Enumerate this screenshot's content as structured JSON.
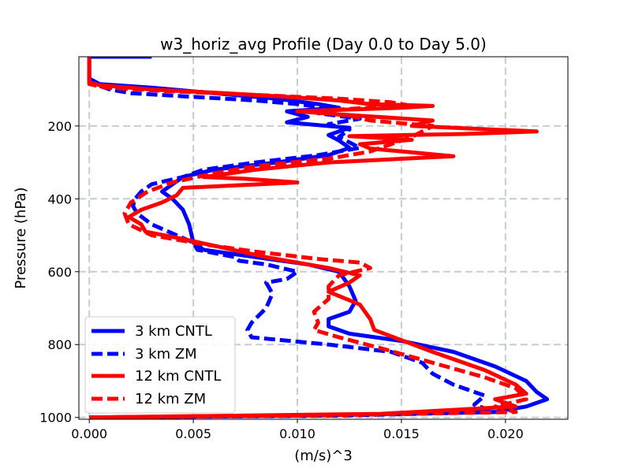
{
  "chart_data": {
    "type": "line",
    "title": "w3_horiz_avg Profile (Day 0.0 to Day 5.0)",
    "xlabel": "(m/s)^3",
    "ylabel": "Pressure (hPa)",
    "xlim": [
      -0.0005,
      0.023
    ],
    "ylim": [
      1005,
      10
    ],
    "y_inverted": true,
    "grid": true,
    "legend_location": "lower-left",
    "x_ticks": [
      0.0,
      0.005,
      0.01,
      0.015,
      0.02
    ],
    "x_tick_labels": [
      "0.000",
      "0.005",
      "0.010",
      "0.015",
      "0.020"
    ],
    "y_ticks": [
      200,
      400,
      600,
      800,
      1000
    ],
    "y_tick_labels": [
      "200",
      "400",
      "600",
      "800",
      "1000"
    ],
    "series": [
      {
        "name": "3 km CNTL",
        "color": "#0000ff",
        "linestyle": "solid",
        "points": [
          [
            0.003,
            10
          ],
          [
            0.0,
            10
          ],
          [
            0.0,
            70
          ],
          [
            0.0005,
            85
          ],
          [
            0.003,
            95
          ],
          [
            0.006,
            110
          ],
          [
            0.009,
            125
          ],
          [
            0.011,
            140
          ],
          [
            0.012,
            150
          ],
          [
            0.0095,
            160
          ],
          [
            0.0105,
            175
          ],
          [
            0.0095,
            190
          ],
          [
            0.0125,
            205
          ],
          [
            0.0115,
            225
          ],
          [
            0.012,
            240
          ],
          [
            0.0125,
            260
          ],
          [
            0.0115,
            280
          ],
          [
            0.009,
            300
          ],
          [
            0.006,
            320
          ],
          [
            0.0045,
            340
          ],
          [
            0.004,
            360
          ],
          [
            0.0035,
            380
          ],
          [
            0.004,
            400
          ],
          [
            0.0045,
            430
          ],
          [
            0.0048,
            470
          ],
          [
            0.005,
            520
          ],
          [
            0.0055,
            540
          ],
          [
            0.008,
            560
          ],
          [
            0.0105,
            580
          ],
          [
            0.012,
            600
          ],
          [
            0.0125,
            640
          ],
          [
            0.0128,
            680
          ],
          [
            0.0125,
            710
          ],
          [
            0.0115,
            730
          ],
          [
            0.0115,
            750
          ],
          [
            0.0125,
            770
          ],
          [
            0.015,
            790
          ],
          [
            0.0175,
            820
          ],
          [
            0.0195,
            860
          ],
          [
            0.021,
            900
          ],
          [
            0.0215,
            930
          ],
          [
            0.022,
            950
          ],
          [
            0.021,
            970
          ],
          [
            0.0195,
            985
          ],
          [
            0.01,
            995
          ],
          [
            0.0,
            1000
          ]
        ]
      },
      {
        "name": "3 km ZM",
        "color": "#0000ff",
        "linestyle": "dashed",
        "points": [
          [
            0.0,
            65
          ],
          [
            0.0,
            75
          ],
          [
            0.0005,
            90
          ],
          [
            0.001,
            100
          ],
          [
            0.002,
            110
          ],
          [
            0.005,
            120
          ],
          [
            0.008,
            130
          ],
          [
            0.01,
            140
          ],
          [
            0.012,
            155
          ],
          [
            0.011,
            165
          ],
          [
            0.013,
            180
          ],
          [
            0.0115,
            195
          ],
          [
            0.0125,
            210
          ],
          [
            0.012,
            230
          ],
          [
            0.013,
            260
          ],
          [
            0.011,
            280
          ],
          [
            0.008,
            300
          ],
          [
            0.0055,
            320
          ],
          [
            0.0045,
            340
          ],
          [
            0.003,
            360
          ],
          [
            0.0025,
            380
          ],
          [
            0.0022,
            400
          ],
          [
            0.0021,
            420
          ],
          [
            0.0023,
            440
          ],
          [
            0.003,
            470
          ],
          [
            0.0042,
            500
          ],
          [
            0.005,
            520
          ],
          [
            0.0052,
            540
          ],
          [
            0.007,
            560
          ],
          [
            0.0072,
            570
          ],
          [
            0.0085,
            580
          ],
          [
            0.01,
            600
          ],
          [
            0.0095,
            620
          ],
          [
            0.0085,
            630
          ],
          [
            0.0088,
            660
          ],
          [
            0.0085,
            700
          ],
          [
            0.0078,
            740
          ],
          [
            0.0076,
            760
          ],
          [
            0.0078,
            780
          ],
          [
            0.0115,
            800
          ],
          [
            0.0145,
            820
          ],
          [
            0.016,
            850
          ],
          [
            0.0165,
            880
          ],
          [
            0.0175,
            910
          ],
          [
            0.019,
            940
          ],
          [
            0.0185,
            965
          ],
          [
            0.0195,
            985
          ],
          [
            0.012,
            995
          ],
          [
            0.0,
            1000
          ]
        ]
      },
      {
        "name": "12 km CNTL",
        "color": "#ff0000",
        "linestyle": "solid",
        "points": [
          [
            0.0,
            10
          ],
          [
            0.0,
            80
          ],
          [
            0.0005,
            88
          ],
          [
            0.003,
            100
          ],
          [
            0.0065,
            110
          ],
          [
            0.0095,
            120
          ],
          [
            0.012,
            130
          ],
          [
            0.0135,
            140
          ],
          [
            0.0165,
            145
          ],
          [
            0.015,
            150
          ],
          [
            0.01,
            160
          ],
          [
            0.0125,
            170
          ],
          [
            0.0165,
            185
          ],
          [
            0.0155,
            200
          ],
          [
            0.0215,
            215
          ],
          [
            0.018,
            222
          ],
          [
            0.0125,
            228
          ],
          [
            0.0155,
            238
          ],
          [
            0.013,
            250
          ],
          [
            0.0135,
            262
          ],
          [
            0.0175,
            283
          ],
          [
            0.0115,
            300
          ],
          [
            0.008,
            320
          ],
          [
            0.0055,
            340
          ],
          [
            0.0075,
            345
          ],
          [
            0.01,
            355
          ],
          [
            0.0045,
            370
          ],
          [
            0.0042,
            390
          ],
          [
            0.0035,
            410
          ],
          [
            0.0025,
            430
          ],
          [
            0.0019,
            450
          ],
          [
            0.0025,
            470
          ],
          [
            0.0027,
            490
          ],
          [
            0.0045,
            510
          ],
          [
            0.0065,
            535
          ],
          [
            0.0085,
            560
          ],
          [
            0.0115,
            590
          ],
          [
            0.013,
            610
          ],
          [
            0.0125,
            630
          ],
          [
            0.0115,
            655
          ],
          [
            0.013,
            690
          ],
          [
            0.0135,
            730
          ],
          [
            0.0137,
            760
          ],
          [
            0.0165,
            820
          ],
          [
            0.019,
            870
          ],
          [
            0.0205,
            910
          ],
          [
            0.021,
            935
          ],
          [
            0.0195,
            950
          ],
          [
            0.0205,
            970
          ],
          [
            0.014,
            990
          ],
          [
            0.0,
            1000
          ]
        ]
      },
      {
        "name": "12 km ZM",
        "color": "#ff0000",
        "linestyle": "dashed",
        "points": [
          [
            0.0,
            75
          ],
          [
            0.0,
            85
          ],
          [
            0.0008,
            95
          ],
          [
            0.004,
            105
          ],
          [
            0.008,
            115
          ],
          [
            0.012,
            125
          ],
          [
            0.0145,
            135
          ],
          [
            0.0155,
            145
          ],
          [
            0.0135,
            150
          ],
          [
            0.0105,
            160
          ],
          [
            0.0125,
            172
          ],
          [
            0.0135,
            185
          ],
          [
            0.0165,
            200
          ],
          [
            0.016,
            215
          ],
          [
            0.0155,
            230
          ],
          [
            0.0145,
            250
          ],
          [
            0.0135,
            270
          ],
          [
            0.0115,
            290
          ],
          [
            0.008,
            310
          ],
          [
            0.006,
            330
          ],
          [
            0.004,
            355
          ],
          [
            0.0028,
            380
          ],
          [
            0.002,
            410
          ],
          [
            0.0017,
            440
          ],
          [
            0.0019,
            470
          ],
          [
            0.003,
            500
          ],
          [
            0.0055,
            525
          ],
          [
            0.008,
            545
          ],
          [
            0.011,
            565
          ],
          [
            0.013,
            575
          ],
          [
            0.0135,
            590
          ],
          [
            0.012,
            610
          ],
          [
            0.0115,
            640
          ],
          [
            0.0115,
            675
          ],
          [
            0.0108,
            710
          ],
          [
            0.011,
            740
          ],
          [
            0.0108,
            760
          ],
          [
            0.012,
            780
          ],
          [
            0.014,
            810
          ],
          [
            0.0165,
            850
          ],
          [
            0.019,
            890
          ],
          [
            0.0205,
            920
          ],
          [
            0.021,
            950
          ],
          [
            0.0195,
            970
          ],
          [
            0.0205,
            985
          ],
          [
            0.0105,
            995
          ],
          [
            0.0,
            1000
          ]
        ]
      }
    ]
  }
}
